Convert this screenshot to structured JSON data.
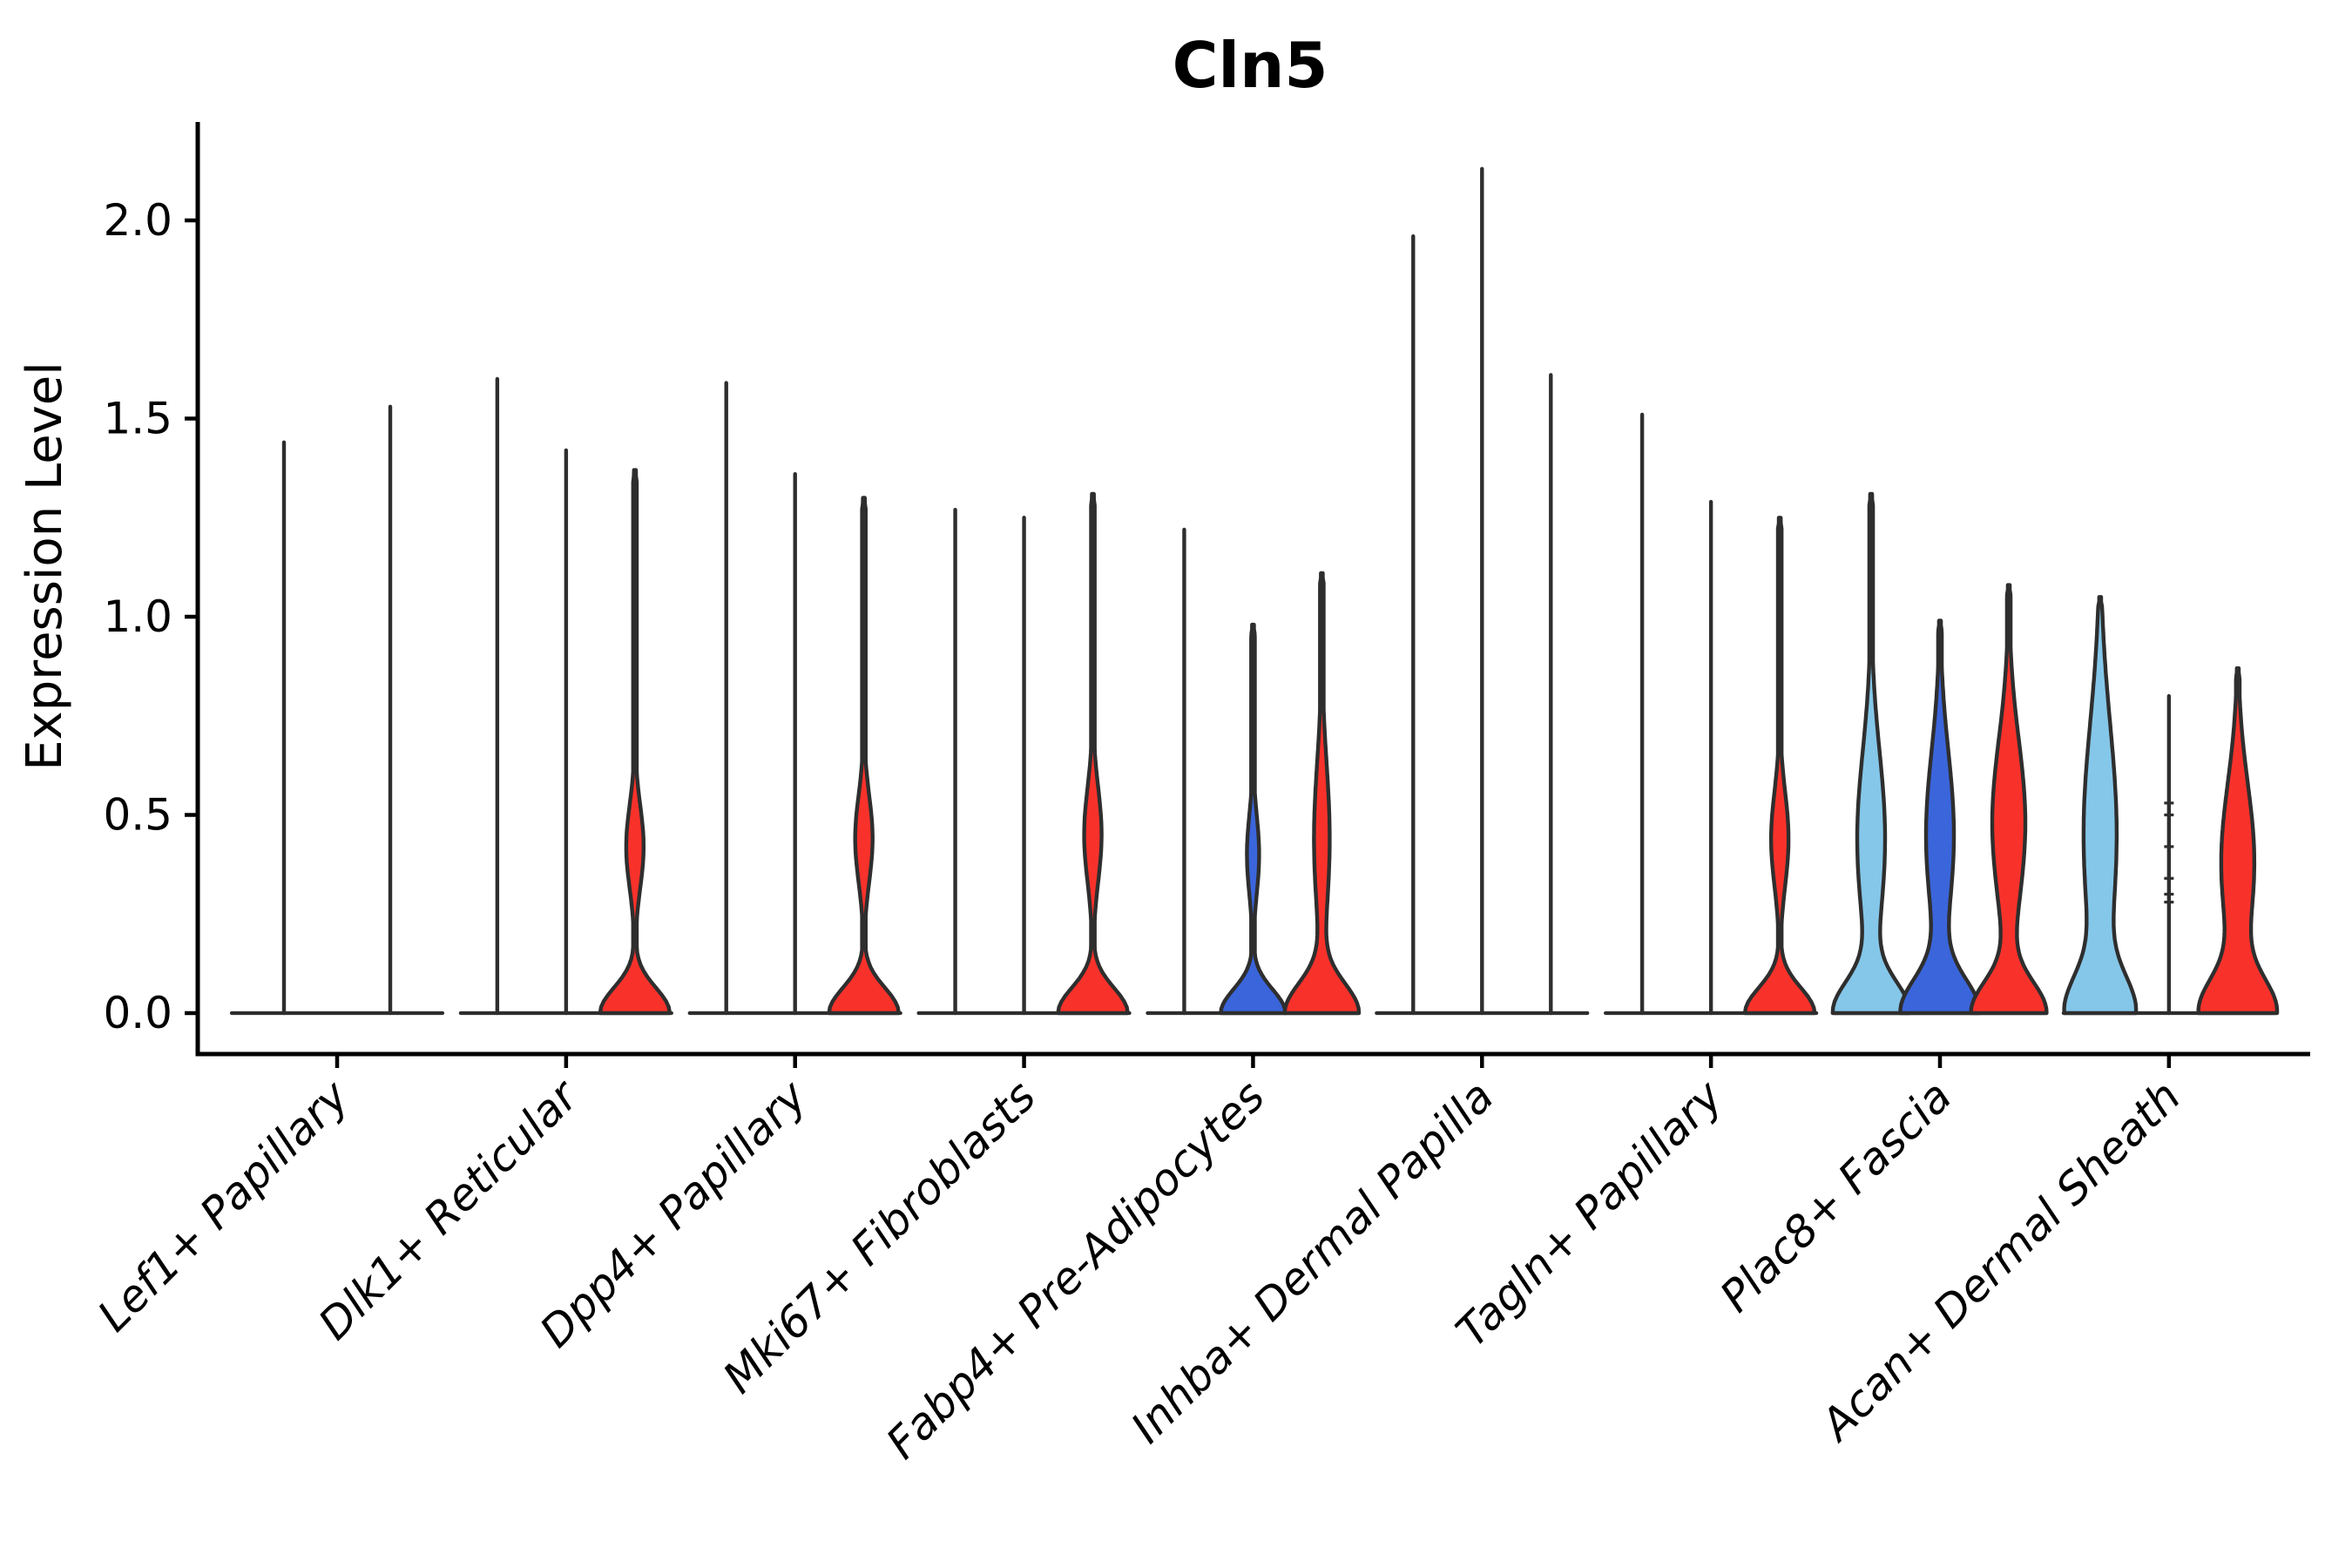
{
  "title": "Cln5",
  "chart_data": {
    "type": "violin",
    "title": "Cln5",
    "ylabel": "Expression Level",
    "xlabel": "",
    "yticks": [
      0.0,
      0.5,
      1.0,
      1.5,
      2.0
    ],
    "ylim": [
      -0.1,
      2.25
    ],
    "grid": false,
    "legend": "none",
    "colors": {
      "red": "#F8322B",
      "blue": "#3B65DB",
      "lightblue": "#85C7E9",
      "violin_stroke": "#2e2e2e",
      "axis": "#000000"
    },
    "categories": [
      {
        "label": "Lef1+ Papillary",
        "violins": [
          {
            "kind": "spike",
            "max": 1.44,
            "fill": null
          },
          {
            "kind": "spike",
            "max": 1.53,
            "fill": null
          }
        ]
      },
      {
        "label": "Dlk1+ Reticular",
        "violins": [
          {
            "kind": "spike",
            "max": 1.6,
            "fill": null
          },
          {
            "kind": "spike",
            "max": 1.42,
            "fill": null
          },
          {
            "kind": "violin",
            "max": 1.37,
            "fill": "red",
            "base": 40,
            "s1": 0.09,
            "amp": 10,
            "vb": 0.42,
            "sb": 0.105
          }
        ]
      },
      {
        "label": "Dpp4+ Papillary",
        "violins": [
          {
            "kind": "spike",
            "max": 1.59,
            "fill": null
          },
          {
            "kind": "spike",
            "max": 1.36,
            "fill": null
          },
          {
            "kind": "violin",
            "max": 1.3,
            "fill": "red",
            "base": 40,
            "s1": 0.09,
            "amp": 10,
            "vb": 0.44,
            "sb": 0.11
          }
        ]
      },
      {
        "label": "Mki67+ Fibroblasts",
        "violins": [
          {
            "kind": "spike",
            "max": 1.27,
            "fill": null
          },
          {
            "kind": "spike",
            "max": 1.25,
            "fill": null
          },
          {
            "kind": "violin",
            "max": 1.31,
            "fill": "red",
            "base": 40,
            "s1": 0.09,
            "amp": 10,
            "vb": 0.45,
            "sb": 0.12
          }
        ]
      },
      {
        "label": "Fabp4+ Pre-Adipocytes",
        "violins": [
          {
            "kind": "spike",
            "max": 1.22,
            "fill": null
          },
          {
            "kind": "violin",
            "max": 0.98,
            "fill": "blue",
            "base": 37,
            "s1": 0.085,
            "amp": 7,
            "vb": 0.4,
            "sb": 0.1
          },
          {
            "kind": "violin",
            "max": 1.11,
            "fill": "red",
            "base": 42,
            "s1": 0.105,
            "amp": 9,
            "vb": 0.44,
            "sb": 0.19
          }
        ]
      },
      {
        "label": "Inhba+ Dermal Papilla",
        "violins": [
          {
            "kind": "spike",
            "max": 1.96,
            "fill": null
          },
          {
            "kind": "spike",
            "max": 2.13,
            "fill": null
          },
          {
            "kind": "spike",
            "max": 1.61,
            "fill": null
          }
        ]
      },
      {
        "label": "Tagln+ Papillary",
        "violins": [
          {
            "kind": "spike",
            "max": 1.51,
            "fill": null
          },
          {
            "kind": "spike",
            "max": 1.29,
            "fill": null
          },
          {
            "kind": "violin",
            "max": 1.25,
            "fill": "red",
            "base": 40,
            "s1": 0.09,
            "amp": 10,
            "vb": 0.44,
            "sb": 0.12
          }
        ]
      },
      {
        "label": "Plac8+ Fascia",
        "violins": [
          {
            "kind": "violin",
            "max": 1.31,
            "fill": "lightblue",
            "base": 42,
            "s1": 0.11,
            "amp": 16,
            "vb": 0.44,
            "sb": 0.22
          },
          {
            "kind": "violin",
            "max": 0.99,
            "fill": "blue",
            "base": 44,
            "s1": 0.12,
            "amp": 16,
            "vb": 0.45,
            "sb": 0.21
          },
          {
            "kind": "violin",
            "max": 1.08,
            "fill": "red",
            "base": 42,
            "s1": 0.11,
            "amp": 19,
            "vb": 0.48,
            "sb": 0.21
          }
        ]
      },
      {
        "label": "Acan+ Dermal Sheath",
        "violins": [
          {
            "kind": "violin",
            "max": 1.05,
            "fill": "lightblue",
            "base": 36,
            "s1": 0.13,
            "amp": 19,
            "vb": 0.45,
            "sb": 0.28
          },
          {
            "kind": "spike",
            "max": 0.8,
            "fill": null,
            "marks": [
              0.53,
              0.5,
              0.42,
              0.34,
              0.3,
              0.28
            ]
          },
          {
            "kind": "violin",
            "max": 0.87,
            "fill": "red",
            "base": 42,
            "s1": 0.12,
            "amp": 19,
            "vb": 0.38,
            "sb": 0.2
          }
        ]
      }
    ]
  }
}
